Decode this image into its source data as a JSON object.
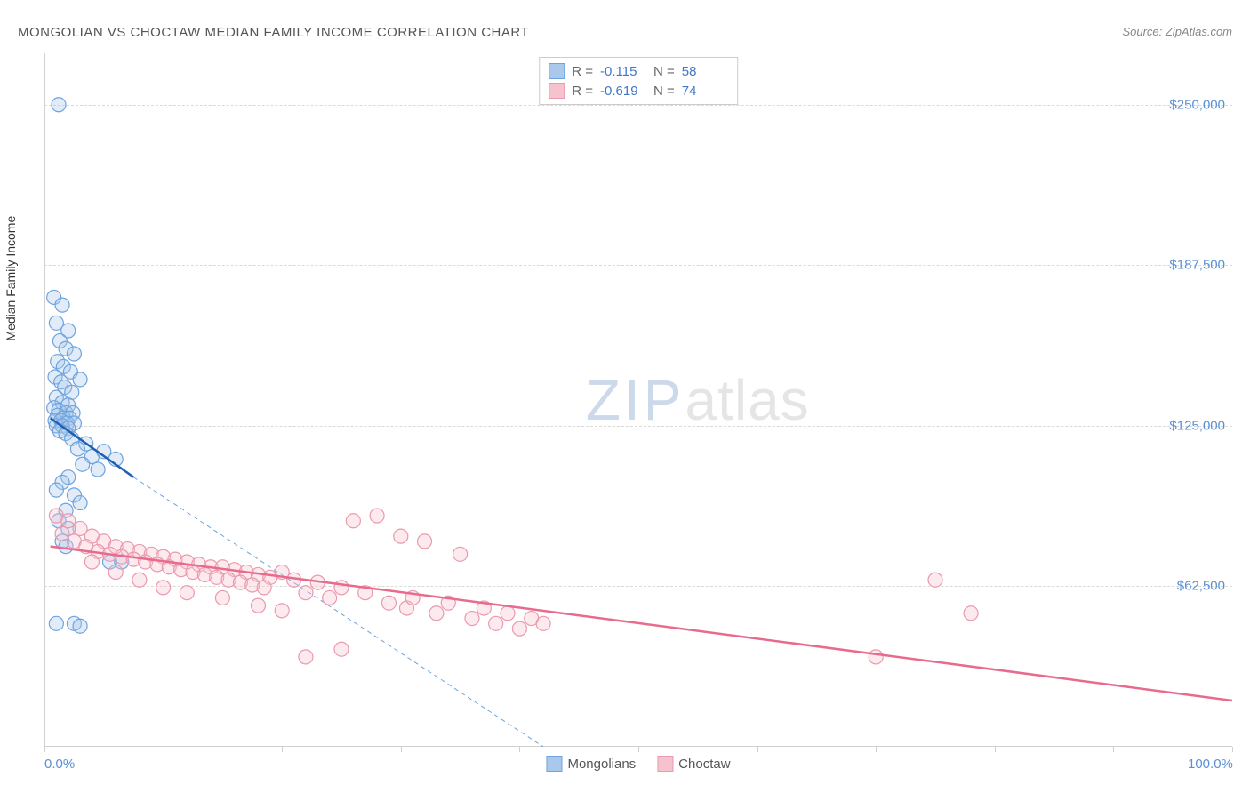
{
  "title": "MONGOLIAN VS CHOCTAW MEDIAN FAMILY INCOME CORRELATION CHART",
  "source": "Source: ZipAtlas.com",
  "y_axis_label": "Median Family Income",
  "watermark_zip": "ZIP",
  "watermark_atlas": "atlas",
  "chart": {
    "type": "scatter",
    "xlim": [
      0,
      100
    ],
    "ylim": [
      0,
      270000
    ],
    "x_tick_positions": [
      0,
      10,
      20,
      30,
      40,
      50,
      60,
      70,
      80,
      90,
      100
    ],
    "x_tick_labels_shown": {
      "0": "0.0%",
      "100": "100.0%"
    },
    "y_tick_positions": [
      62500,
      125000,
      187500,
      250000
    ],
    "y_tick_labels": [
      "$62,500",
      "$125,000",
      "$187,500",
      "$250,000"
    ],
    "grid_color": "#d9d9d9",
    "background_color": "#ffffff",
    "axis_color": "#d0d0d0",
    "tick_label_color": "#5b8fd6",
    "tick_label_fontsize": 15,
    "marker_radius": 8,
    "marker_fill_opacity": 0.35,
    "marker_stroke_width": 1.2,
    "series": [
      {
        "name": "Mongolians",
        "color_fill": "#a9c8ec",
        "color_stroke": "#6ea3de",
        "r_value": "-0.115",
        "n_value": "58",
        "trend_solid": {
          "x1": 0.5,
          "y1": 128000,
          "x2": 7.5,
          "y2": 105000,
          "color": "#1f5fb0",
          "width": 2.5
        },
        "trend_dashed": {
          "x1": 7.5,
          "y1": 105000,
          "x2": 42,
          "y2": 0,
          "color": "#6ea3de",
          "width": 1,
          "dash": "5,4"
        },
        "points": [
          [
            1.2,
            250000
          ],
          [
            0.8,
            175000
          ],
          [
            1.5,
            172000
          ],
          [
            1.0,
            165000
          ],
          [
            2.0,
            162000
          ],
          [
            1.3,
            158000
          ],
          [
            1.8,
            155000
          ],
          [
            2.5,
            153000
          ],
          [
            1.1,
            150000
          ],
          [
            1.6,
            148000
          ],
          [
            2.2,
            146000
          ],
          [
            0.9,
            144000
          ],
          [
            1.4,
            142000
          ],
          [
            3.0,
            143000
          ],
          [
            1.7,
            140000
          ],
          [
            2.3,
            138000
          ],
          [
            1.0,
            136000
          ],
          [
            1.5,
            134000
          ],
          [
            2.0,
            133000
          ],
          [
            0.8,
            132000
          ],
          [
            1.2,
            131000
          ],
          [
            1.8,
            130000
          ],
          [
            2.4,
            130000
          ],
          [
            1.1,
            129000
          ],
          [
            1.6,
            128000
          ],
          [
            2.1,
            128000
          ],
          [
            0.9,
            127000
          ],
          [
            1.4,
            127000
          ],
          [
            1.9,
            126000
          ],
          [
            2.5,
            126000
          ],
          [
            1.0,
            125000
          ],
          [
            1.5,
            125000
          ],
          [
            2.0,
            124000
          ],
          [
            1.3,
            123000
          ],
          [
            1.8,
            122000
          ],
          [
            2.3,
            120000
          ],
          [
            3.5,
            118000
          ],
          [
            2.8,
            116000
          ],
          [
            4.0,
            113000
          ],
          [
            5.0,
            115000
          ],
          [
            3.2,
            110000
          ],
          [
            6.0,
            112000
          ],
          [
            4.5,
            108000
          ],
          [
            2.0,
            105000
          ],
          [
            1.5,
            103000
          ],
          [
            1.0,
            100000
          ],
          [
            2.5,
            98000
          ],
          [
            3.0,
            95000
          ],
          [
            1.8,
            92000
          ],
          [
            1.2,
            88000
          ],
          [
            2.0,
            85000
          ],
          [
            1.5,
            80000
          ],
          [
            5.5,
            72000
          ],
          [
            6.5,
            72000
          ],
          [
            1.0,
            48000
          ],
          [
            2.5,
            48000
          ],
          [
            3.0,
            47000
          ],
          [
            1.8,
            78000
          ]
        ]
      },
      {
        "name": "Choctaw",
        "color_fill": "#f5c2ce",
        "color_stroke": "#eb99ad",
        "r_value": "-0.619",
        "n_value": "74",
        "trend_solid": {
          "x1": 0.5,
          "y1": 78000,
          "x2": 100,
          "y2": 18000,
          "color": "#e86a8d",
          "width": 2.5
        },
        "points": [
          [
            1.0,
            90000
          ],
          [
            2.0,
            88000
          ],
          [
            3.0,
            85000
          ],
          [
            1.5,
            83000
          ],
          [
            4.0,
            82000
          ],
          [
            2.5,
            80000
          ],
          [
            5.0,
            80000
          ],
          [
            3.5,
            78000
          ],
          [
            6.0,
            78000
          ],
          [
            4.5,
            76000
          ],
          [
            7.0,
            77000
          ],
          [
            5.5,
            75000
          ],
          [
            8.0,
            76000
          ],
          [
            6.5,
            74000
          ],
          [
            9.0,
            75000
          ],
          [
            7.5,
            73000
          ],
          [
            10.0,
            74000
          ],
          [
            8.5,
            72000
          ],
          [
            11.0,
            73000
          ],
          [
            9.5,
            71000
          ],
          [
            12.0,
            72000
          ],
          [
            10.5,
            70000
          ],
          [
            13.0,
            71000
          ],
          [
            11.5,
            69000
          ],
          [
            14.0,
            70000
          ],
          [
            12.5,
            68000
          ],
          [
            15.0,
            70000
          ],
          [
            13.5,
            67000
          ],
          [
            16.0,
            69000
          ],
          [
            14.5,
            66000
          ],
          [
            17.0,
            68000
          ],
          [
            15.5,
            65000
          ],
          [
            18.0,
            67000
          ],
          [
            16.5,
            64000
          ],
          [
            19.0,
            66000
          ],
          [
            17.5,
            63000
          ],
          [
            20.0,
            68000
          ],
          [
            18.5,
            62000
          ],
          [
            21.0,
            65000
          ],
          [
            22.0,
            60000
          ],
          [
            23.0,
            64000
          ],
          [
            24.0,
            58000
          ],
          [
            25.0,
            62000
          ],
          [
            26.0,
            88000
          ],
          [
            27.0,
            60000
          ],
          [
            28.0,
            90000
          ],
          [
            29.0,
            56000
          ],
          [
            30.0,
            82000
          ],
          [
            30.5,
            54000
          ],
          [
            31.0,
            58000
          ],
          [
            32.0,
            80000
          ],
          [
            33.0,
            52000
          ],
          [
            34.0,
            56000
          ],
          [
            35.0,
            75000
          ],
          [
            36.0,
            50000
          ],
          [
            37.0,
            54000
          ],
          [
            38.0,
            48000
          ],
          [
            39.0,
            52000
          ],
          [
            40.0,
            46000
          ],
          [
            41.0,
            50000
          ],
          [
            42.0,
            48000
          ],
          [
            75.0,
            65000
          ],
          [
            78.0,
            52000
          ],
          [
            70.0,
            35000
          ],
          [
            22.0,
            35000
          ],
          [
            25.0,
            38000
          ],
          [
            18.0,
            55000
          ],
          [
            20.0,
            53000
          ],
          [
            15.0,
            58000
          ],
          [
            12.0,
            60000
          ],
          [
            10.0,
            62000
          ],
          [
            8.0,
            65000
          ],
          [
            6.0,
            68000
          ],
          [
            4.0,
            72000
          ]
        ]
      }
    ]
  },
  "legend_top_labels": {
    "r": "R =",
    "n": "N ="
  },
  "legend_bottom": [
    {
      "label": "Mongolians",
      "fill": "#a9c8ec",
      "stroke": "#6ea3de"
    },
    {
      "label": "Choctaw",
      "fill": "#f5c2ce",
      "stroke": "#eb99ad"
    }
  ]
}
